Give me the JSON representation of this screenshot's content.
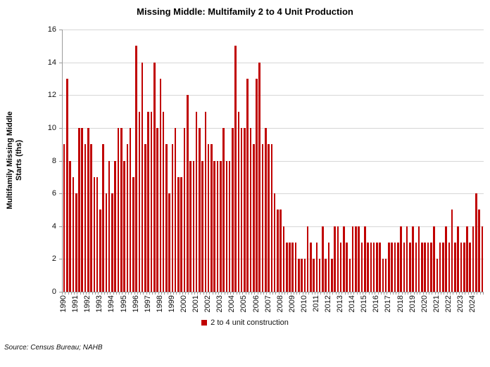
{
  "title": "Missing Middle: Multifamily 2 to 4 Unit Production",
  "y_axis": {
    "label_line1": "Multifamily Missing Middle",
    "label_line2": "Starts (ths)",
    "min": 0,
    "max": 16,
    "step": 2
  },
  "legend": {
    "label": "2 to 4 unit construction"
  },
  "source": "Source: Census Bureau; NAHB",
  "colors": {
    "bar": "#C00000",
    "gridline": "#D6D6D6",
    "axis": "#9A9A9A",
    "text": "#000000"
  },
  "chart_data": {
    "type": "bar",
    "title": "Missing Middle: Multifamily 2 to 4 Unit Production",
    "xlabel": "",
    "ylabel": "Multifamily Missing Middle Starts (ths)",
    "ylim": [
      0,
      16
    ],
    "grid": true,
    "legend_position": "bottom",
    "x_unit": "quarter",
    "years": [
      "1990",
      "1991",
      "1992",
      "1993",
      "1994",
      "1995",
      "1996",
      "1997",
      "1998",
      "1999",
      "2000",
      "2001",
      "2002",
      "2003",
      "2004",
      "2005",
      "2006",
      "2007",
      "2008",
      "2009",
      "2010",
      "2011",
      "2012",
      "2013",
      "2014",
      "2015",
      "2016",
      "2017",
      "2018",
      "2019",
      "2020",
      "2021",
      "2022",
      "2023",
      "2024"
    ],
    "quarters_per_year": 4,
    "series": [
      {
        "name": "2 to 4 unit construction",
        "values": [
          9,
          13,
          8,
          7,
          6,
          10,
          10,
          9,
          10,
          9,
          7,
          7,
          5,
          9,
          6,
          8,
          6,
          8,
          10,
          10,
          8,
          9,
          10,
          7,
          15,
          11,
          14,
          9,
          11,
          11,
          14,
          10,
          13,
          11,
          9,
          6,
          9,
          10,
          7,
          7,
          10,
          12,
          8,
          8,
          11,
          10,
          8,
          11,
          9,
          9,
          8,
          8,
          8,
          10,
          8,
          8,
          10,
          15,
          11,
          10,
          10,
          13,
          10,
          9,
          13,
          14,
          9,
          10,
          9,
          9,
          6,
          5,
          5,
          4,
          3,
          3,
          3,
          3,
          2,
          2,
          2,
          4,
          3,
          2,
          3,
          2,
          4,
          2,
          3,
          2,
          4,
          4,
          3,
          4,
          3,
          2,
          4,
          4,
          4,
          3,
          4,
          3,
          3,
          3,
          3,
          3,
          2,
          2,
          3,
          3,
          3,
          3,
          4,
          3,
          4,
          3,
          4,
          3,
          4,
          3,
          3,
          3,
          3,
          4,
          2,
          3,
          3,
          4,
          3,
          5,
          3,
          4,
          3,
          3,
          4,
          3,
          4,
          6,
          5,
          4
        ]
      }
    ]
  }
}
